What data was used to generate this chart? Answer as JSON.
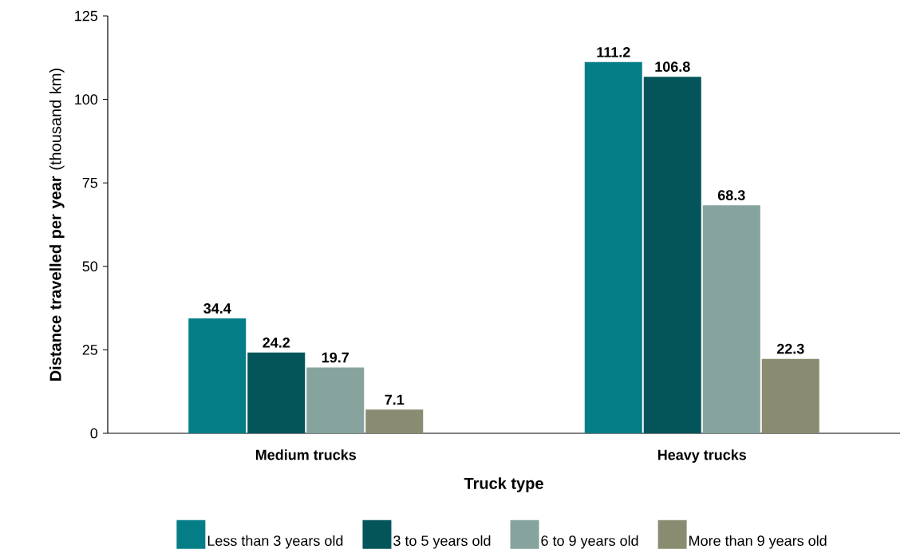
{
  "chart_data": {
    "type": "bar",
    "xlabel": "Truck type",
    "ylabel": "**Distance travelled per year** (thousand km)",
    "categories": [
      "Medium trucks",
      "Heavy trucks"
    ],
    "series": [
      {
        "name": "Less than 3 years old",
        "color": "#057d87",
        "values": [
          34.4,
          111.2
        ]
      },
      {
        "name": "3 to 5 years old",
        "color": "#03555a",
        "values": [
          24.2,
          106.8
        ]
      },
      {
        "name": "6 to 9 years old",
        "color": "#87a39e",
        "values": [
          19.7,
          68.3
        ]
      },
      {
        "name": "More than 9 years old",
        "color": "#8a8c72",
        "values": [
          7.1,
          22.3
        ]
      }
    ],
    "ylim": [
      0,
      125
    ],
    "yticks": [
      0,
      25,
      50,
      75,
      100,
      125
    ],
    "data_labels": true,
    "legend": "bottom",
    "grid": false
  }
}
